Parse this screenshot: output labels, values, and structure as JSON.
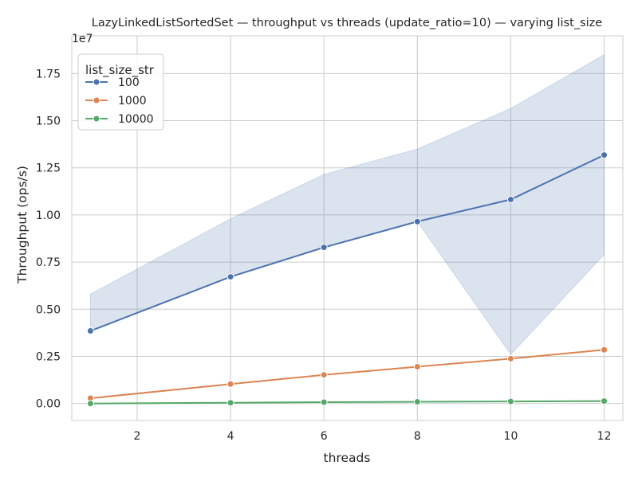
{
  "chart_data": {
    "type": "line",
    "title": "LazyLinkedListSortedSet — throughput vs threads (update_ratio=10) — varying list_size",
    "xlabel": "threads",
    "ylabel": "Throughput (ops/s)",
    "y_offset_label": "1e7",
    "xlim": [
      0.6,
      12.4
    ],
    "ylim": [
      -0.09,
      1.95
    ],
    "x_ticks": [
      2,
      4,
      6,
      8,
      10,
      12
    ],
    "y_ticks": [
      0.0,
      0.25,
      0.5,
      0.75,
      1.0,
      1.25,
      1.5,
      1.75
    ],
    "y_tick_labels": [
      "0.00",
      "0.25",
      "0.50",
      "0.75",
      "1.00",
      "1.25",
      "1.50",
      "1.75"
    ],
    "grid": true,
    "legend": {
      "title": "list_size_str",
      "placement": "top-left"
    },
    "x": [
      1,
      4,
      6,
      8,
      10,
      12
    ],
    "series": [
      {
        "name": "100",
        "color": "#4c72b0",
        "values": [
          0.385,
          0.672,
          0.828,
          0.965,
          1.082,
          1.318
        ],
        "ci_lower": [
          0.385,
          0.672,
          0.828,
          0.965,
          0.26,
          0.79
        ],
        "ci_upper": [
          0.58,
          0.98,
          1.215,
          1.35,
          1.565,
          1.85
        ]
      },
      {
        "name": "1000",
        "color": "#dd8452",
        "values": [
          0.028,
          0.103,
          0.152,
          0.195,
          0.238,
          0.285
        ]
      },
      {
        "name": "10000",
        "color": "#55a868",
        "values": [
          0.0,
          0.004,
          0.007,
          0.009,
          0.011,
          0.013
        ]
      }
    ]
  }
}
